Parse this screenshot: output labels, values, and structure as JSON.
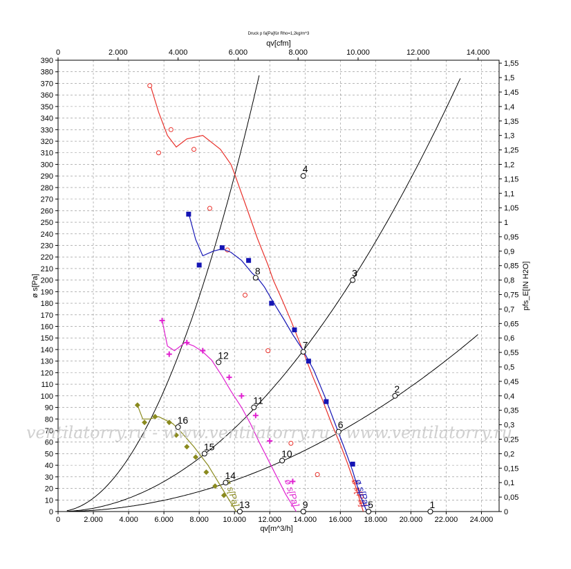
{
  "header": {
    "title": "Druck p fa[Pa]für Rho=1,2kg/m^3"
  },
  "watermark": "ventilatorry.ru - www.ventilatorry.ru - www.ventilatorry.ru",
  "chart_data": {
    "type": "line",
    "title": "Druck p fa[Pa]für Rho=1,2kg/m^3",
    "xlabel": "qv[m^3/h]",
    "x2label": "qv[cfm]",
    "ylabel": "ø s[Pa]",
    "y2label": "pfs_E[IN H2O]",
    "xlim": [
      0,
      25000
    ],
    "x2lim": [
      0,
      14700
    ],
    "ylim": [
      0,
      390
    ],
    "y2lim": [
      0,
      1.56
    ],
    "grid": true,
    "x_ticks": [
      0,
      2000,
      4000,
      6000,
      8000,
      10000,
      12000,
      14000,
      16000,
      18000,
      20000,
      22000,
      24000
    ],
    "x_tick_labels": [
      "0",
      "2.000",
      "4.000",
      "6.000",
      "8.000",
      "10.000",
      "12.000",
      "14.000",
      "16.000",
      "18.000",
      "20.000",
      "22.000",
      "24.000"
    ],
    "x2_ticks": [
      0,
      2000,
      4000,
      6000,
      8000,
      10000,
      12000,
      14000
    ],
    "x2_tick_labels": [
      "0",
      "2.000",
      "4.000",
      "6.000",
      "8.000",
      "10.000",
      "12.000",
      "14.000"
    ],
    "y_ticks": [
      0,
      10,
      20,
      30,
      40,
      50,
      60,
      70,
      80,
      90,
      100,
      110,
      120,
      130,
      140,
      150,
      160,
      170,
      180,
      190,
      200,
      210,
      220,
      230,
      240,
      250,
      260,
      270,
      280,
      290,
      300,
      310,
      320,
      330,
      340,
      350,
      360,
      370,
      380,
      390
    ],
    "y2_ticks": [
      0,
      0.05,
      0.1,
      0.15,
      0.2,
      0.25,
      0.3,
      0.35,
      0.4,
      0.45,
      0.5,
      0.55,
      0.6,
      0.65,
      0.7,
      0.75,
      0.8,
      0.85,
      0.9,
      0.95,
      1,
      1.05,
      1.1,
      1.15,
      1.2,
      1.25,
      1.3,
      1.35,
      1.4,
      1.45,
      1.5,
      1.55
    ],
    "y2_tick_labels": [
      "0",
      "0,05",
      "0,1",
      "0,15",
      "0,2",
      "0,25",
      "0,3",
      "0,35",
      "0,4",
      "0,45",
      "0,5",
      "0,55",
      "0,6",
      "0,65",
      "0,7",
      "0,75",
      "0,8",
      "0,85",
      "0,9",
      "0,95",
      "1",
      "1,05",
      "1,1",
      "1,15",
      "1,2",
      "1,25",
      "1,3",
      "1,35",
      "1,4",
      "1,45",
      "1,5",
      "1,55"
    ],
    "series": [
      {
        "name": "ø s[Pa]",
        "label_number": "1",
        "color": "#e8302a",
        "marker": "circle-dot",
        "curve": [
          [
            5200,
            370
          ],
          [
            5700,
            345
          ],
          [
            6200,
            325
          ],
          [
            6700,
            315
          ],
          [
            7300,
            322
          ],
          [
            8200,
            325
          ],
          [
            9200,
            313
          ],
          [
            9800,
            300
          ],
          [
            10000,
            292
          ],
          [
            10700,
            262
          ],
          [
            11300,
            236
          ],
          [
            11900,
            213
          ],
          [
            12200,
            200
          ],
          [
            12700,
            183
          ],
          [
            13200,
            165
          ],
          [
            13800,
            142
          ],
          [
            14400,
            118
          ],
          [
            15000,
            96
          ],
          [
            15500,
            76
          ],
          [
            16000,
            58
          ],
          [
            16400,
            42
          ],
          [
            16900,
            20
          ],
          [
            17300,
            0
          ]
        ],
        "markers": [
          [
            5200,
            368
          ],
          [
            5700,
            310
          ],
          [
            6400,
            330
          ],
          [
            7700,
            313
          ],
          [
            8600,
            262
          ],
          [
            9600,
            226
          ],
          [
            10600,
            187
          ],
          [
            11900,
            139
          ],
          [
            13200,
            59
          ],
          [
            14700,
            32
          ]
        ]
      },
      {
        "name": "ø s[Pa]",
        "label_number": "5",
        "color": "#1414b4",
        "marker": "square",
        "curve": [
          [
            7400,
            258
          ],
          [
            7800,
            235
          ],
          [
            8200,
            221
          ],
          [
            8800,
            225
          ],
          [
            9300,
            227
          ],
          [
            9800,
            224
          ],
          [
            10400,
            217
          ],
          [
            11000,
            206
          ],
          [
            11300,
            202
          ],
          [
            11700,
            194
          ],
          [
            12200,
            181
          ],
          [
            12800,
            166
          ],
          [
            13300,
            153
          ],
          [
            13900,
            139
          ],
          [
            14500,
            122
          ],
          [
            15100,
            100
          ],
          [
            15700,
            76
          ],
          [
            16300,
            52
          ],
          [
            16700,
            35
          ],
          [
            17100,
            15
          ],
          [
            17500,
            0
          ]
        ],
        "markers": [
          [
            7400,
            257
          ],
          [
            8000,
            213
          ],
          [
            9300,
            228
          ],
          [
            10800,
            217
          ],
          [
            12100,
            180
          ],
          [
            13400,
            157
          ],
          [
            14200,
            130
          ],
          [
            15200,
            95
          ],
          [
            16700,
            41
          ]
        ]
      },
      {
        "name": "ø s[Pa]",
        "label_number": "9",
        "color": "#e020d0",
        "marker": "plus",
        "curve": [
          [
            5900,
            165
          ],
          [
            6200,
            143
          ],
          [
            6600,
            139
          ],
          [
            7200,
            146
          ],
          [
            7700,
            143
          ],
          [
            8200,
            138
          ],
          [
            8700,
            131
          ],
          [
            9300,
            117
          ],
          [
            9800,
            104
          ],
          [
            10400,
            90
          ],
          [
            10900,
            76
          ],
          [
            11400,
            60
          ],
          [
            11900,
            45
          ],
          [
            12400,
            30
          ],
          [
            12900,
            15
          ],
          [
            13500,
            0
          ]
        ],
        "markers": [
          [
            5900,
            165
          ],
          [
            6300,
            136
          ],
          [
            7300,
            146
          ],
          [
            8200,
            139
          ],
          [
            9700,
            116
          ],
          [
            10400,
            100
          ],
          [
            11200,
            83
          ],
          [
            12000,
            61
          ],
          [
            13300,
            26
          ]
        ]
      },
      {
        "name": "ø s[Pa]",
        "label_number": "13",
        "color": "#8a8a1e",
        "marker": "diamond",
        "curve": [
          [
            4500,
            92
          ],
          [
            4800,
            80
          ],
          [
            5200,
            80
          ],
          [
            5700,
            82
          ],
          [
            6100,
            79
          ],
          [
            6500,
            76
          ],
          [
            6900,
            70
          ],
          [
            7300,
            63
          ],
          [
            7700,
            56
          ],
          [
            8100,
            48
          ],
          [
            8500,
            40
          ],
          [
            8900,
            30
          ],
          [
            9300,
            20
          ],
          [
            9700,
            10
          ],
          [
            10100,
            0
          ]
        ],
        "markers": [
          [
            4500,
            92
          ],
          [
            4900,
            77
          ],
          [
            5500,
            82
          ],
          [
            6300,
            77
          ],
          [
            6700,
            66
          ],
          [
            7300,
            56
          ],
          [
            7800,
            47
          ],
          [
            8400,
            34
          ],
          [
            8900,
            22
          ],
          [
            9400,
            14
          ]
        ]
      }
    ],
    "system_curves": [
      {
        "k": 2.9e-06,
        "xmax": 11400,
        "points": [
          "4",
          "8",
          "12",
          "16"
        ]
      },
      {
        "k": 7.2e-07,
        "xmax": 22800,
        "points": [
          "3",
          "7",
          "11",
          "15"
        ]
      },
      {
        "k": 2.7e-07,
        "xmax": 23800,
        "points": [
          "2",
          "6",
          "10",
          "14"
        ]
      }
    ],
    "operating_points": [
      {
        "label": "4",
        "x": 13900,
        "y": 290
      },
      {
        "label": "3",
        "x": 16700,
        "y": 200
      },
      {
        "label": "2",
        "x": 19100,
        "y": 100
      },
      {
        "label": "1",
        "x": 21100,
        "y": 0
      },
      {
        "label": "8",
        "x": 11200,
        "y": 202
      },
      {
        "label": "7",
        "x": 13900,
        "y": 138
      },
      {
        "label": "6",
        "x": 15900,
        "y": 69
      },
      {
        "label": "5",
        "x": 17600,
        "y": 0
      },
      {
        "label": "12",
        "x": 9100,
        "y": 129
      },
      {
        "label": "11",
        "x": 11100,
        "y": 90
      },
      {
        "label": "10",
        "x": 12700,
        "y": 44
      },
      {
        "label": "9",
        "x": 13900,
        "y": 0
      },
      {
        "label": "16",
        "x": 6800,
        "y": 73
      },
      {
        "label": "15",
        "x": 8300,
        "y": 50
      },
      {
        "label": "14",
        "x": 9500,
        "y": 25
      },
      {
        "label": "13",
        "x": 10300,
        "y": 0
      }
    ]
  }
}
